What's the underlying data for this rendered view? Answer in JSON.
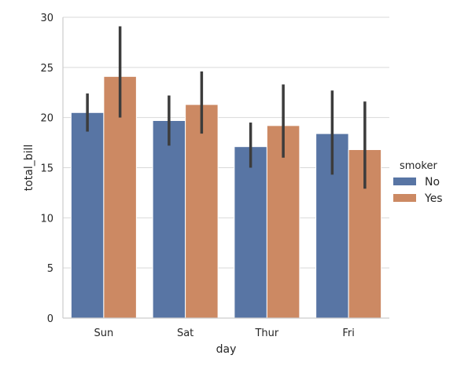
{
  "chart_data": {
    "type": "bar",
    "xlabel": "day",
    "ylabel": "total_bill",
    "categories": [
      "Sun",
      "Sat",
      "Thur",
      "Fri"
    ],
    "ylim": [
      0,
      30
    ],
    "yticks": [
      0,
      5,
      10,
      15,
      20,
      25,
      30
    ],
    "grid": "horizontal",
    "legend": {
      "title": "smoker",
      "placement": "right"
    },
    "series": [
      {
        "name": "No",
        "color": "#5875a4",
        "values": [
          20.5,
          19.7,
          17.1,
          18.4
        ],
        "ci_low": [
          18.6,
          17.2,
          15.0,
          14.3
        ],
        "ci_high": [
          22.4,
          22.2,
          19.5,
          22.7
        ]
      },
      {
        "name": "Yes",
        "color": "#cc8963",
        "values": [
          24.1,
          21.3,
          19.2,
          16.8
        ],
        "ci_low": [
          20.0,
          18.4,
          16.0,
          12.9
        ],
        "ci_high": [
          29.1,
          24.6,
          23.3,
          21.6
        ]
      }
    ]
  }
}
